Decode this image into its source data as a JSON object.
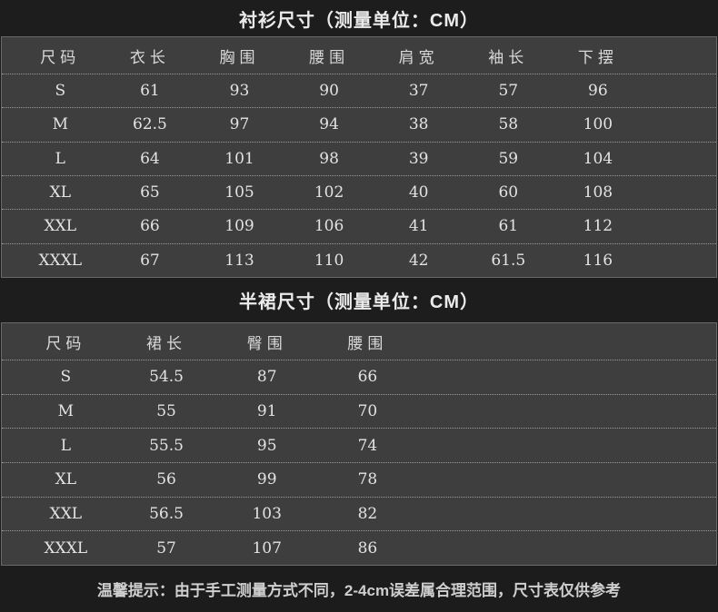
{
  "colors": {
    "page_bg": "#1c1c1c",
    "band_bg": "#1d1d1d",
    "table_bg": "#3e3e3e",
    "table_border": "#696969",
    "row_divider": "#9a9a9a",
    "title_text": "#ebebeb",
    "cell_text": "#e3e3e3"
  },
  "shirt_section": {
    "title": "衬衫尺寸（测量单位：CM）",
    "headers": [
      "尺码",
      "衣长",
      "胸围",
      "腰围",
      "肩宽",
      "袖长",
      "下摆"
    ],
    "rows": [
      [
        "S",
        "61",
        "93",
        "90",
        "37",
        "57",
        "96"
      ],
      [
        "M",
        "62.5",
        "97",
        "94",
        "38",
        "58",
        "100"
      ],
      [
        "L",
        "64",
        "101",
        "98",
        "39",
        "59",
        "104"
      ],
      [
        "XL",
        "65",
        "105",
        "102",
        "40",
        "60",
        "108"
      ],
      [
        "XXL",
        "66",
        "109",
        "106",
        "41",
        "61",
        "112"
      ],
      [
        "XXXL",
        "67",
        "113",
        "110",
        "42",
        "61.5",
        "116"
      ]
    ]
  },
  "skirt_section": {
    "title": "半裙尺寸（测量单位：CM）",
    "headers": [
      "尺码",
      "裙长",
      "臀围",
      "腰围"
    ],
    "rows": [
      [
        "S",
        "54.5",
        "87",
        "66"
      ],
      [
        "M",
        "55",
        "91",
        "70"
      ],
      [
        "L",
        "55.5",
        "95",
        "74"
      ],
      [
        "XL",
        "56",
        "99",
        "78"
      ],
      [
        "XXL",
        "56.5",
        "103",
        "82"
      ],
      [
        "XXXL",
        "57",
        "107",
        "86"
      ]
    ]
  },
  "footer": {
    "note": "温馨提示：由于手工测量方式不同，2-4cm误差属合理范围，尺寸表仅供参考"
  }
}
